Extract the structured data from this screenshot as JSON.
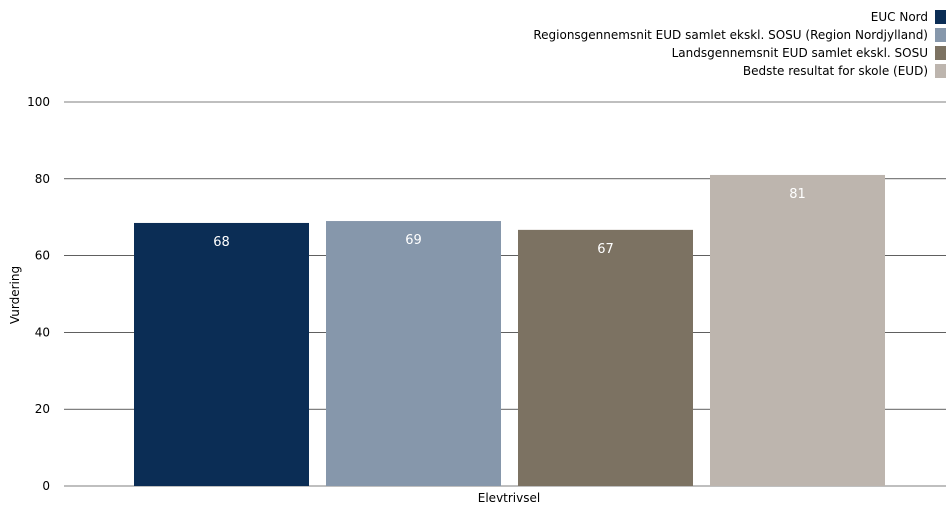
{
  "chart_data": {
    "type": "bar",
    "categories": [
      "Elevtrivsel"
    ],
    "series": [
      {
        "name": "EUC Nord",
        "values": [
          68
        ],
        "color": "#0b2d55"
      },
      {
        "name": "Regionsgennemsnit EUD samlet ekskl. SOSU (Region Nordjylland)",
        "values": [
          69
        ],
        "color": "#8697ab"
      },
      {
        "name": "Landsgennemsnit EUD samlet ekskl. SOSU",
        "values": [
          67
        ],
        "color": "#7c7262"
      },
      {
        "name": "Bedste resultat for skole (EUD)",
        "values": [
          81
        ],
        "color": "#bdb5ae"
      }
    ],
    "bar_heights": [
      68.5,
      69,
      66.7,
      81
    ],
    "title": "",
    "xlabel": "Elevtrivsel",
    "ylabel": "Vurdering",
    "ylim": [
      0,
      100
    ],
    "yticks": [
      0,
      20,
      40,
      60,
      80,
      100
    ],
    "grid": true,
    "legend_position": "top-right"
  }
}
